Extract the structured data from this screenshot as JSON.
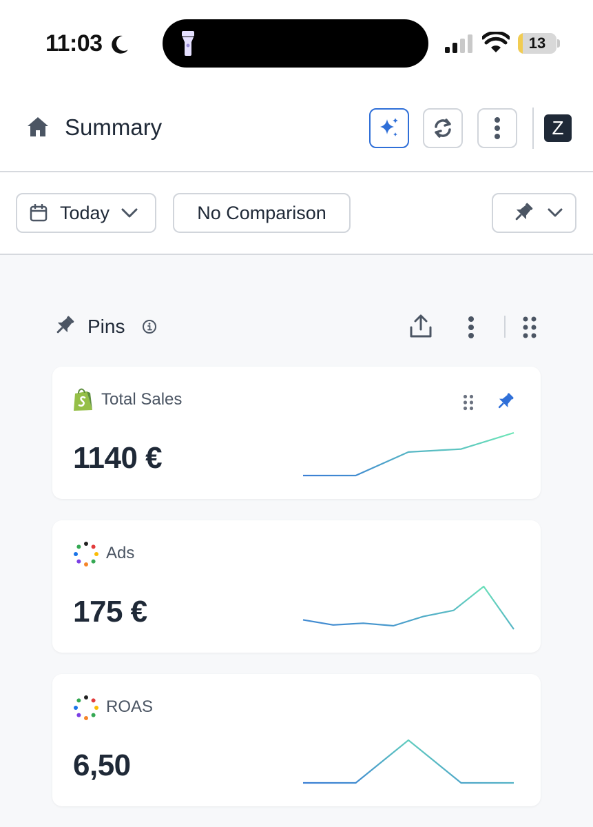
{
  "status_bar": {
    "time": "11:03",
    "battery_level": 13,
    "battery_label": "13",
    "icons": [
      "moon-icon",
      "flashlight-icon",
      "cellular-signal-icon",
      "wifi-icon",
      "battery-icon"
    ]
  },
  "header": {
    "title": "Summary",
    "avatar_letter": "Z",
    "icons": [
      "home-icon",
      "ai-sparkle-icon",
      "refresh-icon",
      "more-vertical-icon"
    ]
  },
  "filters": {
    "date_label": "Today",
    "comparison_label": "No Comparison",
    "icons": [
      "calendar-icon",
      "chevron-down-icon",
      "pin-icon"
    ]
  },
  "pins": {
    "title": "Pins",
    "icons": [
      "pin-icon",
      "info-icon",
      "share-icon",
      "more-vertical-icon",
      "drag-grid-icon"
    ]
  },
  "cards": [
    {
      "label": "Total Sales",
      "value": "1140 €",
      "source_icon": "shopify-icon",
      "trend": [
        0,
        0,
        0.55,
        0.62,
        1
      ]
    },
    {
      "label": "Ads",
      "value": "175 €",
      "source_icon": "multi-channel-icon",
      "trend": [
        0.22,
        0.1,
        0.14,
        0.08,
        0.3,
        0.44,
        1,
        0
      ]
    },
    {
      "label": "ROAS",
      "value": "6,50",
      "source_icon": "multi-channel-icon",
      "trend": [
        0,
        0,
        1,
        0,
        0
      ]
    }
  ],
  "colors": {
    "accent": "#2f6fd8",
    "spark_start": "#3b7fd4",
    "spark_end": "#6ee7b7",
    "shopify": "#95bf47"
  }
}
